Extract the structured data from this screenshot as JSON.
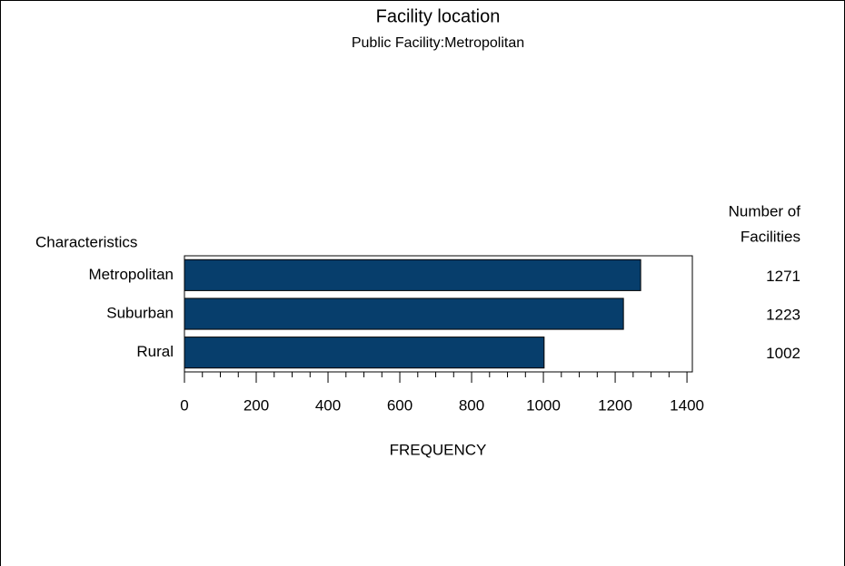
{
  "chart_data": {
    "type": "hbar",
    "title": "Facility location",
    "subtitle": "Public Facility:Metropolitan",
    "y_label": "Characteristics",
    "x_label": "FREQUENCY",
    "value_header": [
      "Number of",
      "Facilities"
    ],
    "categories": [
      "Metropolitan",
      "Suburban",
      "Rural"
    ],
    "values": [
      1271,
      1223,
      1002
    ],
    "color": "#073e6c",
    "xlim": [
      0,
      1415
    ],
    "xticks": [
      0,
      200,
      400,
      600,
      800,
      1000,
      1200,
      1400
    ]
  }
}
